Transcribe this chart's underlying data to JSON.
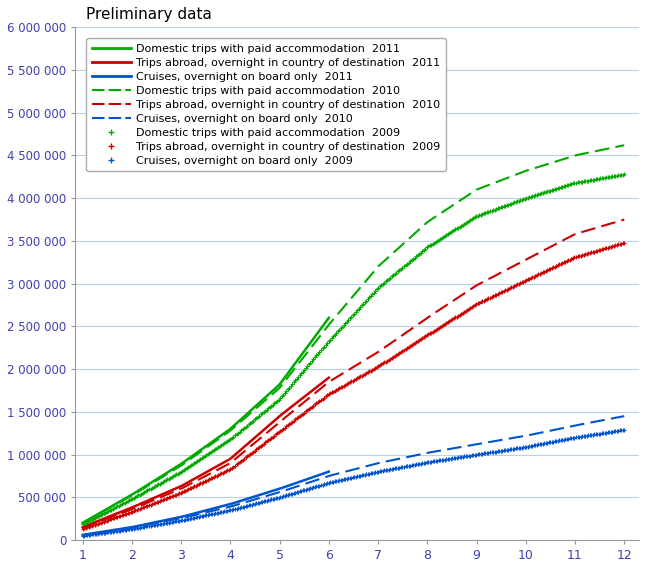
{
  "title": "Preliminary data",
  "xlim": [
    1,
    12
  ],
  "ylim": [
    0,
    6000000
  ],
  "yticks": [
    0,
    500000,
    1000000,
    1500000,
    2000000,
    2500000,
    3000000,
    3500000,
    4000000,
    4500000,
    5000000,
    5500000,
    6000000
  ],
  "ytick_labels": [
    "0",
    "500 000",
    "1 000 000",
    "1 500 000",
    "2 000 000",
    "2 500 000",
    "3 000 000",
    "3 500 000",
    "4 000 000",
    "4 500 000",
    "5 000 000",
    "5 500 000",
    "6 000 000"
  ],
  "xticks": [
    1,
    2,
    3,
    4,
    5,
    6,
    7,
    8,
    9,
    10,
    11,
    12
  ],
  "series": [
    {
      "label": "Domestic trips with paid accommodation  2011",
      "color": "#00aa00",
      "linestyle": "solid",
      "linewidth": 1.8,
      "months": 6,
      "data": [
        200000,
        530000,
        890000,
        1300000,
        1820000,
        2600000
      ]
    },
    {
      "label": "Trips abroad, overnight in country of destination  2011",
      "color": "#cc0000",
      "linestyle": "solid",
      "linewidth": 1.8,
      "months": 6,
      "data": [
        150000,
        380000,
        630000,
        950000,
        1450000,
        1900000
      ]
    },
    {
      "label": "Cruises, overnight on board only  2011",
      "color": "#0055cc",
      "linestyle": "solid",
      "linewidth": 1.8,
      "months": 6,
      "data": [
        60000,
        150000,
        270000,
        420000,
        600000,
        800000
      ]
    },
    {
      "label": "Domestic trips with paid accommodation  2010",
      "color": "#00aa00",
      "linestyle": "dashed",
      "linewidth": 1.5,
      "months": 12,
      "data": [
        200000,
        520000,
        870000,
        1280000,
        1780000,
        2520000,
        3200000,
        3720000,
        4100000,
        4320000,
        4500000,
        4620000
      ]
    },
    {
      "label": "Trips abroad, overnight in country of destination  2010",
      "color": "#cc0000",
      "linestyle": "dashed",
      "linewidth": 1.5,
      "months": 12,
      "data": [
        140000,
        360000,
        600000,
        900000,
        1380000,
        1850000,
        2200000,
        2600000,
        2980000,
        3280000,
        3580000,
        3750000
      ]
    },
    {
      "label": "Cruises, overnight on board only  2010",
      "color": "#0055cc",
      "linestyle": "dashed",
      "linewidth": 1.5,
      "months": 12,
      "data": [
        55000,
        145000,
        255000,
        390000,
        560000,
        750000,
        900000,
        1020000,
        1120000,
        1220000,
        1340000,
        1450000
      ]
    },
    {
      "label": "Domestic trips with paid accommodation  2009",
      "color": "#00aa00",
      "linestyle": "dotted",
      "linewidth": 1.5,
      "months": 12,
      "data": [
        185000,
        480000,
        800000,
        1180000,
        1650000,
        2330000,
        2950000,
        3430000,
        3790000,
        4000000,
        4180000,
        4280000
      ]
    },
    {
      "label": "Trips abroad, overnight in country of destination  2009",
      "color": "#cc0000",
      "linestyle": "dotted",
      "linewidth": 1.5,
      "months": 12,
      "data": [
        130000,
        330000,
        555000,
        830000,
        1270000,
        1710000,
        2030000,
        2400000,
        2760000,
        3040000,
        3310000,
        3480000
      ]
    },
    {
      "label": "Cruises, overnight on board only  2009",
      "color": "#0055cc",
      "linestyle": "dotted",
      "linewidth": 1.5,
      "months": 12,
      "data": [
        50000,
        130000,
        230000,
        350000,
        500000,
        670000,
        800000,
        910000,
        1000000,
        1090000,
        1200000,
        1290000
      ]
    }
  ],
  "background_color": "#ffffff",
  "plot_bg_color": "#ffffff",
  "grid_color": "#b8d0e8",
  "title_color": "#000000",
  "title_fontsize": 11,
  "tick_color": "#4040b0",
  "legend_fontsize": 8.0
}
